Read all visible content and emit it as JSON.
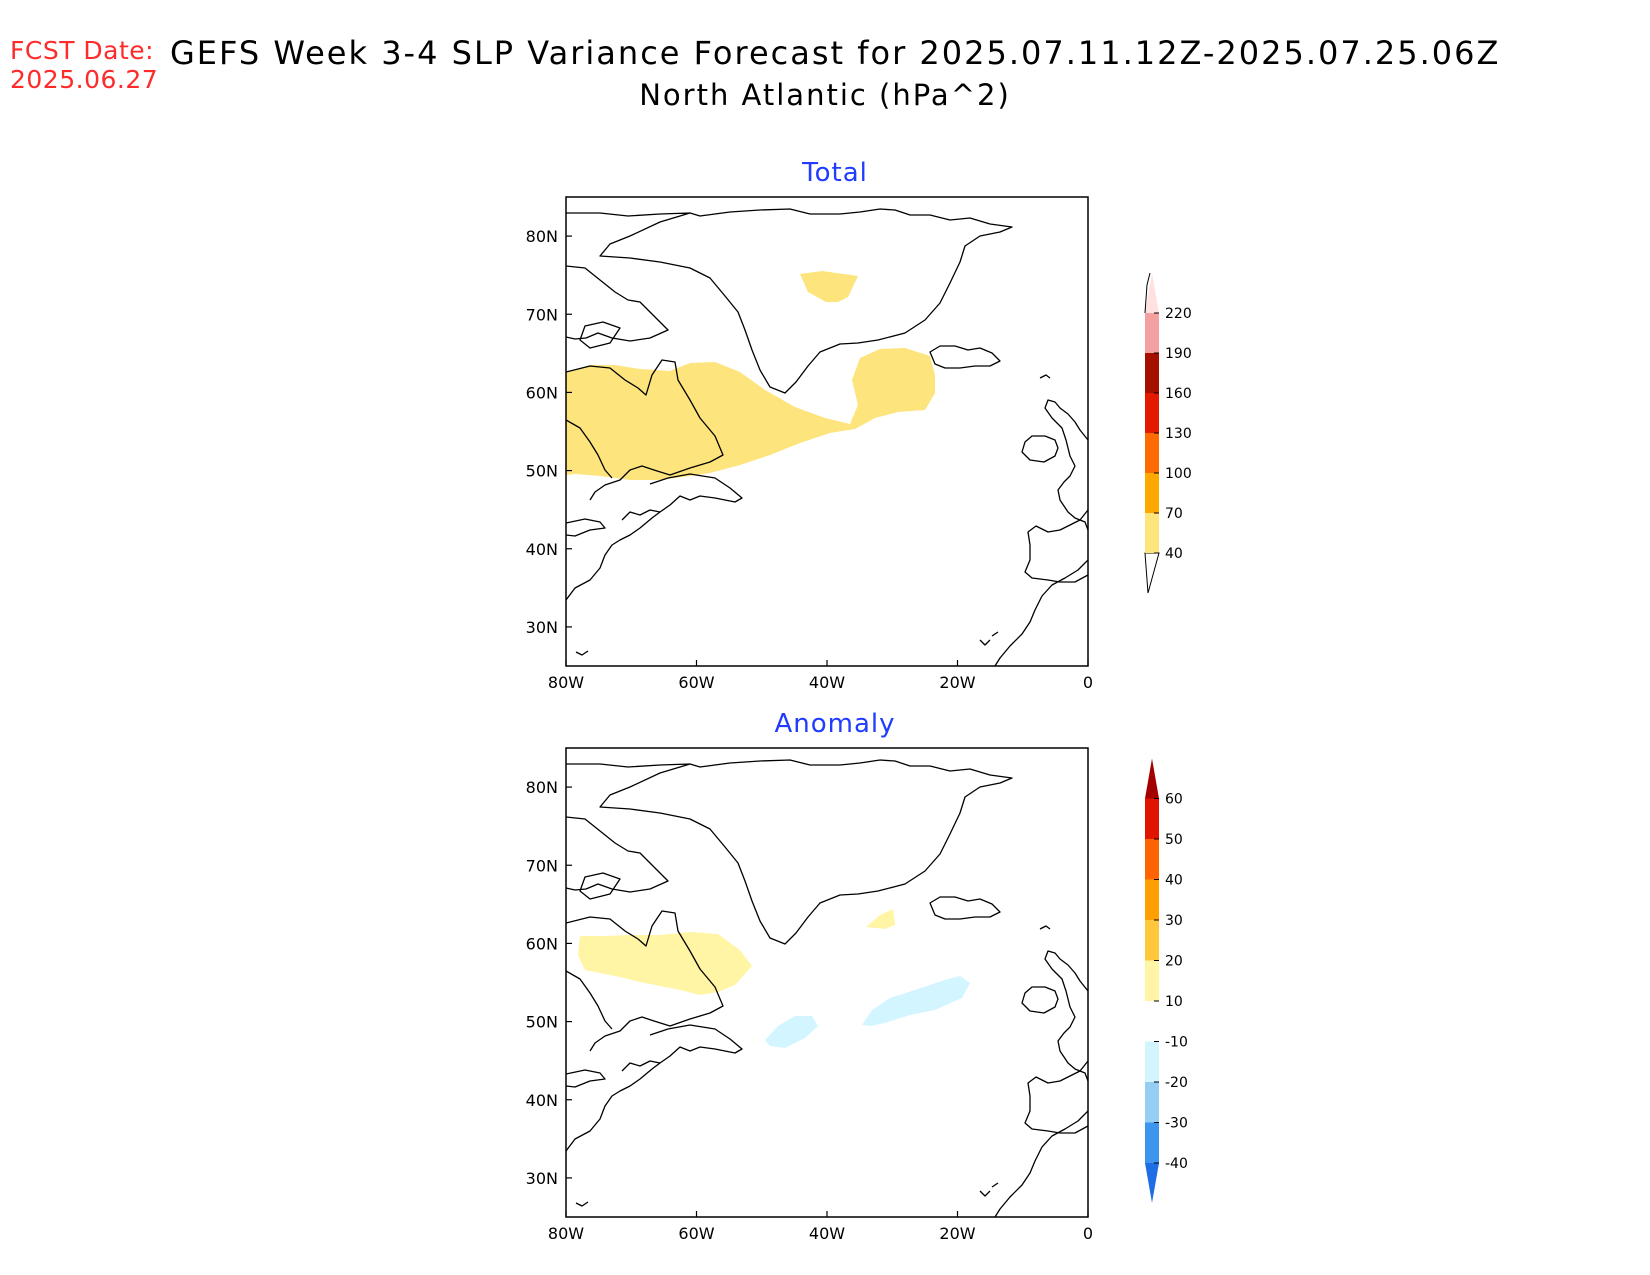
{
  "header": {
    "fcst_label": "FCST Date:",
    "fcst_date": "2025.06.27",
    "title": "GEFS Week 3-4 SLP Variance Forecast for 2025.07.11.12Z-2025.07.25.06Z",
    "subtitle": "North Atlantic (hPa^2)"
  },
  "map": {
    "lon_ticks": [
      "80W",
      "60W",
      "40W",
      "20W",
      "0"
    ],
    "lat_ticks": [
      "30N",
      "40N",
      "50N",
      "60N",
      "70N",
      "80N"
    ]
  },
  "chart_data": [
    {
      "type": "heatmap",
      "title": "Total",
      "xlabel": "",
      "ylabel": "",
      "x_range": [
        -80,
        0
      ],
      "y_range": [
        25,
        85
      ],
      "colorbar": {
        "levels": [
          40,
          70,
          100,
          130,
          160,
          190,
          220
        ],
        "colors": [
          "#fde47d",
          "#ffa800",
          "#ff6a00",
          "#e31a00",
          "#a50f00",
          "#f5a0a0",
          "#ffe1e1"
        ],
        "extend_low_color": "#ffffff",
        "labels": [
          "40",
          "70",
          "100",
          "130",
          "160",
          "190",
          "220"
        ]
      },
      "shaded_regions": [
        {
          "level": "40-70",
          "area": "Labrador Sea / Hudson Strait to central North Atlantic, approx 50N-64N, 80W-25W"
        },
        {
          "level": "40-70",
          "area": "small patch over interior Greenland near 74N, 35W"
        }
      ]
    },
    {
      "type": "heatmap",
      "title": "Anomaly",
      "xlabel": "",
      "ylabel": "",
      "x_range": [
        -80,
        0
      ],
      "y_range": [
        25,
        85
      ],
      "colorbar": {
        "levels": [
          -40,
          -30,
          -20,
          -10,
          10,
          20,
          30,
          40,
          50,
          60
        ],
        "colors": [
          "#1e6ee6",
          "#3c96f0",
          "#96cdf5",
          "#d2f5ff",
          "#ffffff",
          "#fff5a5",
          "#ffc83c",
          "#ffa000",
          "#ff6400",
          "#e11400",
          "#a50000"
        ],
        "labels": [
          "-40",
          "-30",
          "-20",
          "-10",
          "10",
          "20",
          "30",
          "40",
          "50",
          "60"
        ]
      },
      "shaded_regions": [
        {
          "level": "10-20",
          "area": "Labrador / Hudson Strait, approx 54N-61N, 80W-52W"
        },
        {
          "level": "10-20",
          "area": "small patch south of Greenland near 63N, 32W"
        },
        {
          "level": "-20 to -10",
          "area": "central North Atlantic, approx 48N-55N, 48W-20W"
        }
      ]
    }
  ]
}
